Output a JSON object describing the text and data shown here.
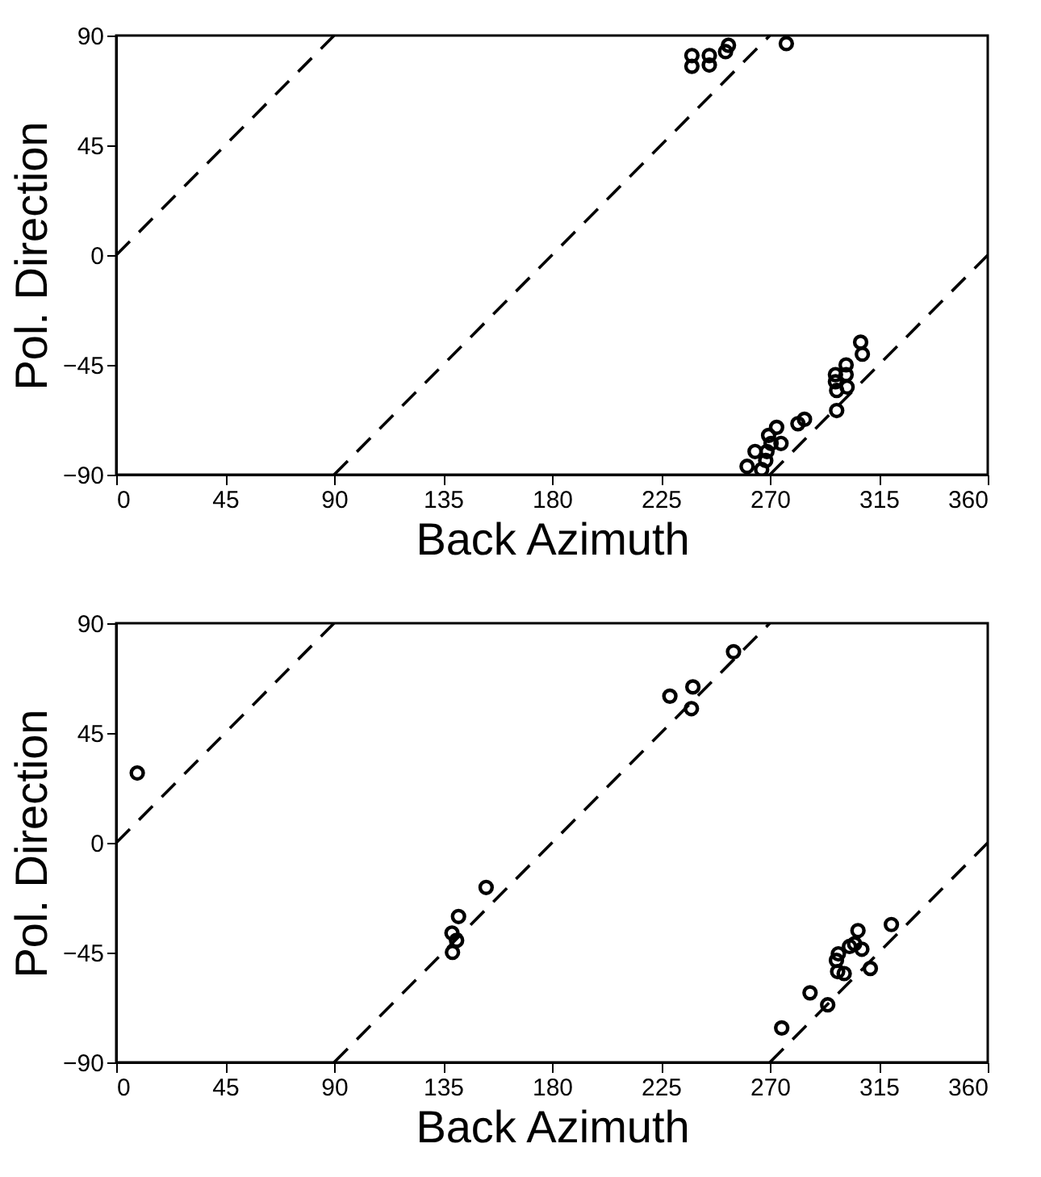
{
  "chart_data": [
    {
      "type": "scatter",
      "xlabel": "Back Azimuth",
      "ylabel": "Pol. Direction",
      "xlim": [
        0,
        360
      ],
      "ylim": [
        -90,
        90
      ],
      "xticks": [
        0,
        45,
        90,
        135,
        180,
        225,
        270,
        315,
        360
      ],
      "yticks": [
        -90,
        -45,
        0,
        45,
        90
      ],
      "grid": false,
      "series": [
        {
          "color": "#000000",
          "marker": "circle",
          "x": [
            237.8,
            237.8,
            245,
            245,
            251.7,
            252.9,
            276.8,
            307.5,
            308.2,
            301.5,
            297.1,
            301.5,
            297.1,
            301.9,
            297.6,
            297.6,
            281.6,
            284.3,
            272.8,
            274.6,
            269.5,
            270.5,
            268.8,
            263.9,
            268.3,
            260.6,
            266.6
          ],
          "values": [
            77.4,
            81.8,
            77.9,
            81.8,
            83.4,
            86,
            86.7,
            -35.7,
            -40.6,
            -45,
            -49,
            -49,
            -51.9,
            -54.1,
            -55.5,
            -63.7,
            -69.1,
            -67.3,
            -70.6,
            -77.2,
            -73.9,
            -77.2,
            -80.5,
            -80.5,
            -84.2,
            -86.6,
            -87.9
          ]
        },
        {
          "type": "line",
          "color": "#000000",
          "line_style": "dashed",
          "x": [
            0,
            90
          ],
          "values": [
            0,
            90
          ]
        },
        {
          "type": "line",
          "color": "#000000",
          "line_style": "dashed",
          "x": [
            90,
            270
          ],
          "values": [
            -90,
            90
          ]
        },
        {
          "type": "line",
          "color": "#000000",
          "line_style": "dashed",
          "x": [
            270,
            360
          ],
          "values": [
            -90,
            0
          ]
        }
      ]
    },
    {
      "type": "scatter",
      "xlabel": "Back Azimuth",
      "ylabel": "Pol. Direction",
      "xlim": [
        0,
        360
      ],
      "ylim": [
        -90,
        90
      ],
      "xticks": [
        0,
        45,
        90,
        135,
        180,
        225,
        270,
        315,
        360
      ],
      "yticks": [
        -90,
        -45,
        0,
        45,
        90
      ],
      "grid": false,
      "series": [
        {
          "color": "#000000",
          "marker": "circle",
          "x": [
            8.7,
            152.8,
            141.4,
            138.7,
            140.6,
            138.9,
            228.7,
            238.2,
            237.6,
            255,
            274.9,
            286.6,
            293.9,
            298.3,
            297.5,
            298,
            300.7,
            302.9,
            305,
            306.4,
            308,
            311.5,
            320.2
          ],
          "values": [
            28.6,
            -18.3,
            -30.2,
            -37,
            -40,
            -44.9,
            60.1,
            63.9,
            55,
            78.3,
            -75.9,
            -61.5,
            -66.4,
            -45.5,
            -48.2,
            -52.8,
            -53.6,
            -42.5,
            -41.4,
            -36,
            -43.6,
            -51.5,
            -33.5
          ]
        },
        {
          "type": "line",
          "color": "#000000",
          "line_style": "dashed",
          "x": [
            0,
            90
          ],
          "values": [
            0,
            90
          ]
        },
        {
          "type": "line",
          "color": "#000000",
          "line_style": "dashed",
          "x": [
            90,
            270
          ],
          "values": [
            -90,
            90
          ]
        },
        {
          "type": "line",
          "color": "#000000",
          "line_style": "dashed",
          "x": [
            270,
            360
          ],
          "values": [
            -90,
            0
          ]
        }
      ]
    }
  ]
}
